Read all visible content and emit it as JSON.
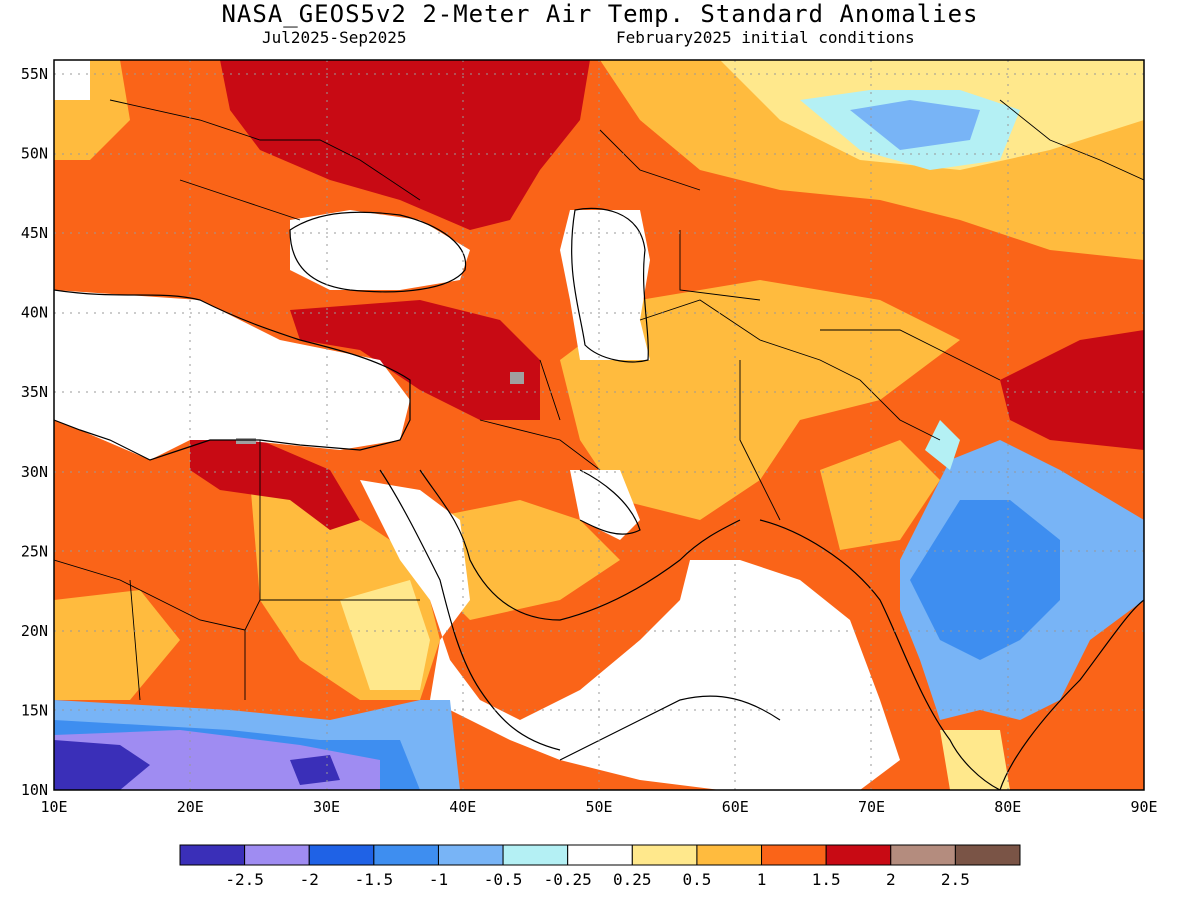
{
  "title": "NASA_GEOS5v2 2-Meter Air Temp. Standard Anomalies",
  "subtitle_period": "Jul2025-Sep2025",
  "subtitle_init": "February2025 initial conditions",
  "lon_labels": [
    "10E",
    "20E",
    "30E",
    "40E",
    "50E",
    "60E",
    "70E",
    "80E",
    "90E"
  ],
  "lat_labels": [
    "55N",
    "50N",
    "45N",
    "40N",
    "35N",
    "30N",
    "25N",
    "20N",
    "15N",
    "10N"
  ],
  "legend": {
    "colors": [
      "#3a2fb8",
      "#9f8cf2",
      "#1f62e6",
      "#3e8ef0",
      "#78b4f6",
      "#b4f0f4",
      "#ffffff",
      "#ffe88c",
      "#ffbb3e",
      "#fa6418",
      "#c80a14",
      "#b48c7e",
      "#7a5446"
    ],
    "labels": [
      "-2.5",
      "-2",
      "-1.5",
      "-1",
      "-0.5",
      "-0.25",
      "0.25",
      "0.5",
      "1",
      "1.5",
      "2",
      "2.5"
    ]
  },
  "map_colors": {
    "land_warm": "#fa6418",
    "mod": "#ffbb3e",
    "weak": "#ffe88c",
    "strong": "#c80a14",
    "neutral": "#ffffff",
    "cool1": "#78b4f6",
    "cool2": "#3e8ef0",
    "cool3": "#b4f0f4",
    "purple": "#9f8cf2",
    "deep_purple": "#3a2fb8",
    "blue_deep": "#1f62e6",
    "gray": "#a0a0a0"
  }
}
